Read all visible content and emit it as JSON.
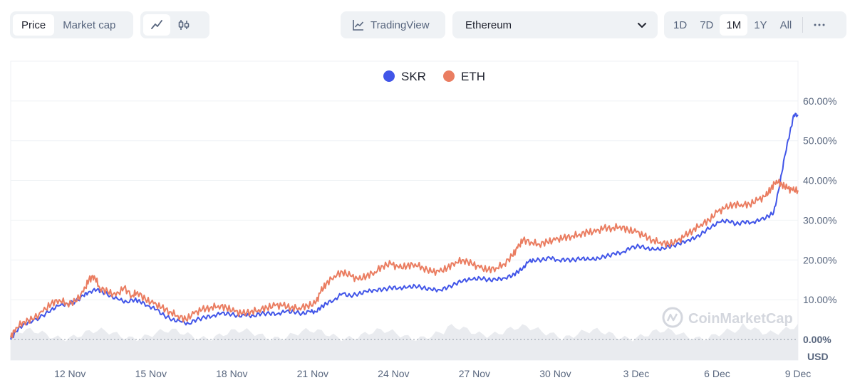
{
  "controls": {
    "metric_tabs": [
      {
        "label": "Price",
        "active": true
      },
      {
        "label": "Market cap",
        "active": false
      }
    ],
    "chart_type_icons": [
      {
        "icon": "line-chart-icon",
        "active": true
      },
      {
        "icon": "candlestick-icon",
        "active": false
      }
    ],
    "tradingview": {
      "label": "TradingView",
      "icon": "tradingview-chart-icon"
    },
    "compare_select": {
      "value": "Ethereum",
      "icon": "chevron-down-icon"
    },
    "ranges": [
      {
        "label": "1D",
        "active": false
      },
      {
        "label": "7D",
        "active": false
      },
      {
        "label": "1M",
        "active": true
      },
      {
        "label": "1Y",
        "active": false
      },
      {
        "label": "All",
        "active": false
      }
    ],
    "more_icon": "more-horizontal-icon"
  },
  "colors": {
    "skr": "#4155e8",
    "eth": "#ea7d61",
    "grid": "#eff2f5",
    "volume": "#e9ebef"
  },
  "watermark": {
    "text": "CoinMarketCap",
    "icon": "coinmarketcap-logo-icon"
  },
  "currency": "USD",
  "chart_data": {
    "type": "line",
    "title": "",
    "xlabel": "",
    "ylabel": "",
    "legend_position": "top-center",
    "grid": true,
    "x_unit": "days",
    "x_ticks": [
      {
        "x": 2,
        "label": "12 Nov"
      },
      {
        "x": 5,
        "label": "15 Nov"
      },
      {
        "x": 8,
        "label": "18 Nov"
      },
      {
        "x": 11,
        "label": "21 Nov"
      },
      {
        "x": 14,
        "label": "24 Nov"
      },
      {
        "x": 17,
        "label": "27 Nov"
      },
      {
        "x": 20,
        "label": "30 Nov"
      },
      {
        "x": 23,
        "label": "3 Dec"
      },
      {
        "x": 26,
        "label": "6 Dec"
      },
      {
        "x": 29,
        "label": "9 Dec"
      }
    ],
    "y_ticks": [
      {
        "y": 0,
        "label": "0.00%"
      },
      {
        "y": 10,
        "label": "10.00%"
      },
      {
        "y": 20,
        "label": "20.00%"
      },
      {
        "y": 30,
        "label": "30.00%"
      },
      {
        "y": 40,
        "label": "40.00%"
      },
      {
        "y": 50,
        "label": "50.00%"
      },
      {
        "y": 60,
        "label": "60.00%"
      }
    ],
    "xlim": [
      -0.2,
      29
    ],
    "ylim": [
      -5.2,
      70
    ],
    "series": [
      {
        "name": "SKR",
        "color": "#4155e8",
        "points": [
          [
            -0.2,
            0
          ],
          [
            0,
            2
          ],
          [
            0.3,
            4
          ],
          [
            0.6,
            4.5
          ],
          [
            1,
            6
          ],
          [
            1.3,
            7.5
          ],
          [
            1.6,
            8.5
          ],
          [
            1.9,
            9
          ],
          [
            2.2,
            9.5
          ],
          [
            2.5,
            11
          ],
          [
            2.7,
            12
          ],
          [
            3,
            12.5
          ],
          [
            3.2,
            12
          ],
          [
            3.5,
            11
          ],
          [
            3.8,
            10
          ],
          [
            4.1,
            9.5
          ],
          [
            4.4,
            10
          ],
          [
            4.6,
            9.5
          ],
          [
            4.9,
            8.5
          ],
          [
            5.2,
            7.5
          ],
          [
            5.5,
            6
          ],
          [
            5.8,
            5
          ],
          [
            6.1,
            4.5
          ],
          [
            6.4,
            4
          ],
          [
            6.7,
            5
          ],
          [
            7,
            5.5
          ],
          [
            7.3,
            6
          ],
          [
            7.6,
            6.5
          ],
          [
            7.9,
            6.5
          ],
          [
            8.2,
            6
          ],
          [
            8.5,
            6
          ],
          [
            8.8,
            6
          ],
          [
            9.1,
            6.5
          ],
          [
            9.4,
            6.5
          ],
          [
            9.7,
            6.5
          ],
          [
            10,
            7
          ],
          [
            10.3,
            7
          ],
          [
            10.6,
            6.5
          ],
          [
            10.9,
            7
          ],
          [
            11.1,
            7
          ],
          [
            11.3,
            8
          ],
          [
            11.5,
            9
          ],
          [
            11.8,
            10
          ],
          [
            12.1,
            11.5
          ],
          [
            12.4,
            11
          ],
          [
            12.7,
            11.5
          ],
          [
            13,
            12
          ],
          [
            13.3,
            12.5
          ],
          [
            13.6,
            12.5
          ],
          [
            13.9,
            13
          ],
          [
            14.2,
            13
          ],
          [
            14.5,
            13
          ],
          [
            14.8,
            13.5
          ],
          [
            15.1,
            13
          ],
          [
            15.4,
            12.5
          ],
          [
            15.7,
            12.5
          ],
          [
            16,
            13
          ],
          [
            16.3,
            14
          ],
          [
            16.6,
            15
          ],
          [
            16.9,
            15
          ],
          [
            17.2,
            15.5
          ],
          [
            17.5,
            15
          ],
          [
            17.8,
            15
          ],
          [
            18.1,
            15.5
          ],
          [
            18.4,
            16
          ],
          [
            18.6,
            17
          ],
          [
            18.8,
            18
          ],
          [
            19,
            19.5
          ],
          [
            19.2,
            20
          ],
          [
            19.5,
            20
          ],
          [
            19.8,
            20.5
          ],
          [
            20.1,
            20
          ],
          [
            20.4,
            20
          ],
          [
            20.7,
            20
          ],
          [
            21,
            20.5
          ],
          [
            21.3,
            20
          ],
          [
            21.6,
            20.5
          ],
          [
            21.9,
            21
          ],
          [
            22.2,
            21.5
          ],
          [
            22.5,
            22
          ],
          [
            22.8,
            23
          ],
          [
            23.1,
            23.5
          ],
          [
            23.4,
            23
          ],
          [
            23.7,
            22.5
          ],
          [
            24,
            23
          ],
          [
            24.3,
            23.5
          ],
          [
            24.6,
            24
          ],
          [
            24.9,
            25
          ],
          [
            25.2,
            25.5
          ],
          [
            25.5,
            27
          ],
          [
            25.8,
            28.5
          ],
          [
            26.1,
            29.5
          ],
          [
            26.4,
            30
          ],
          [
            26.7,
            29
          ],
          [
            27,
            29.5
          ],
          [
            27.3,
            29.5
          ],
          [
            27.6,
            30
          ],
          [
            27.9,
            31
          ],
          [
            28.1,
            32
          ],
          [
            28.3,
            38
          ],
          [
            28.5,
            46
          ],
          [
            28.7,
            52
          ],
          [
            28.85,
            56.5
          ],
          [
            29,
            56.5
          ]
        ]
      },
      {
        "name": "ETH",
        "color": "#ea7d61",
        "points": [
          [
            -0.2,
            0.5
          ],
          [
            0,
            3
          ],
          [
            0.3,
            4.5
          ],
          [
            0.6,
            5
          ],
          [
            1,
            7
          ],
          [
            1.3,
            9
          ],
          [
            1.6,
            10
          ],
          [
            1.9,
            9
          ],
          [
            2.2,
            9.5
          ],
          [
            2.5,
            12
          ],
          [
            2.7,
            15
          ],
          [
            2.9,
            16
          ],
          [
            3.1,
            13
          ],
          [
            3.4,
            12
          ],
          [
            3.7,
            11
          ],
          [
            4,
            13
          ],
          [
            4.3,
            11
          ],
          [
            4.5,
            12
          ],
          [
            4.8,
            10
          ],
          [
            5.1,
            9
          ],
          [
            5.4,
            8
          ],
          [
            5.7,
            7
          ],
          [
            6,
            6
          ],
          [
            6.3,
            5
          ],
          [
            6.6,
            6.5
          ],
          [
            6.9,
            7.5
          ],
          [
            7.2,
            8
          ],
          [
            7.5,
            8.5
          ],
          [
            7.8,
            8
          ],
          [
            8.1,
            7
          ],
          [
            8.4,
            6.5
          ],
          [
            8.7,
            7
          ],
          [
            9,
            7.5
          ],
          [
            9.3,
            8
          ],
          [
            9.6,
            8.5
          ],
          [
            9.9,
            8.5
          ],
          [
            10.2,
            8
          ],
          [
            10.5,
            8
          ],
          [
            10.8,
            8.5
          ],
          [
            11.1,
            9
          ],
          [
            11.3,
            12
          ],
          [
            11.5,
            14
          ],
          [
            11.8,
            16
          ],
          [
            12.1,
            17
          ],
          [
            12.4,
            16
          ],
          [
            12.7,
            15
          ],
          [
            13,
            16
          ],
          [
            13.3,
            17
          ],
          [
            13.6,
            18.5
          ],
          [
            13.9,
            19
          ],
          [
            14.2,
            18
          ],
          [
            14.5,
            18.5
          ],
          [
            14.8,
            19
          ],
          [
            15.1,
            18
          ],
          [
            15.4,
            17
          ],
          [
            15.7,
            17
          ],
          [
            16,
            18
          ],
          [
            16.3,
            19.5
          ],
          [
            16.6,
            20
          ],
          [
            16.9,
            19
          ],
          [
            17.2,
            18
          ],
          [
            17.5,
            17.5
          ],
          [
            17.8,
            18
          ],
          [
            18.1,
            19
          ],
          [
            18.4,
            21
          ],
          [
            18.6,
            23
          ],
          [
            18.8,
            25
          ],
          [
            19.1,
            24.5
          ],
          [
            19.4,
            24
          ],
          [
            19.7,
            24.5
          ],
          [
            20,
            25
          ],
          [
            20.3,
            25.5
          ],
          [
            20.6,
            26
          ],
          [
            20.9,
            26.5
          ],
          [
            21.2,
            27
          ],
          [
            21.5,
            27
          ],
          [
            21.8,
            28
          ],
          [
            22.1,
            28
          ],
          [
            22.4,
            28.5
          ],
          [
            22.7,
            27.5
          ],
          [
            23,
            27
          ],
          [
            23.3,
            26
          ],
          [
            23.6,
            25
          ],
          [
            23.9,
            24.5
          ],
          [
            24.2,
            24
          ],
          [
            24.5,
            24.5
          ],
          [
            24.8,
            26
          ],
          [
            25.1,
            27.5
          ],
          [
            25.4,
            29
          ],
          [
            25.7,
            30
          ],
          [
            26,
            32
          ],
          [
            26.3,
            33
          ],
          [
            26.6,
            34
          ],
          [
            26.9,
            34
          ],
          [
            27.2,
            34
          ],
          [
            27.5,
            35
          ],
          [
            27.8,
            36
          ],
          [
            28,
            38
          ],
          [
            28.2,
            40
          ],
          [
            28.4,
            39
          ],
          [
            28.6,
            38
          ],
          [
            28.8,
            37.5
          ],
          [
            29,
            37.5
          ]
        ]
      }
    ]
  }
}
